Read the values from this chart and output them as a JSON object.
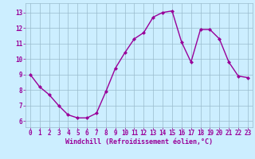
{
  "x": [
    0,
    1,
    2,
    3,
    4,
    5,
    6,
    7,
    8,
    9,
    10,
    11,
    12,
    13,
    14,
    15,
    16,
    17,
    18,
    19,
    20,
    21,
    22,
    23
  ],
  "y": [
    9.0,
    8.2,
    7.7,
    7.0,
    6.4,
    6.2,
    6.2,
    6.5,
    7.9,
    9.4,
    10.4,
    11.3,
    11.7,
    12.7,
    13.0,
    13.1,
    11.1,
    9.8,
    11.9,
    11.9,
    11.3,
    9.8,
    8.9,
    8.8
  ],
  "line_color": "#990099",
  "marker": "D",
  "marker_size": 2.0,
  "bg_color": "#cceeff",
  "grid_color": "#99bbcc",
  "xlabel": "Windchill (Refroidissement éolien,°C)",
  "xlabel_color": "#990099",
  "xlabel_fontsize": 6.0,
  "xtick_labels": [
    "0",
    "1",
    "2",
    "3",
    "4",
    "5",
    "6",
    "7",
    "8",
    "9",
    "10",
    "11",
    "12",
    "13",
    "14",
    "15",
    "16",
    "17",
    "18",
    "19",
    "20",
    "21",
    "22",
    "23"
  ],
  "ytick_labels": [
    "6",
    "7",
    "8",
    "9",
    "10",
    "11",
    "12",
    "13"
  ],
  "ylim": [
    5.6,
    13.6
  ],
  "xlim": [
    -0.5,
    23.5
  ],
  "tick_color": "#990099",
  "tick_fontsize": 5.5,
  "line_width": 1.0
}
